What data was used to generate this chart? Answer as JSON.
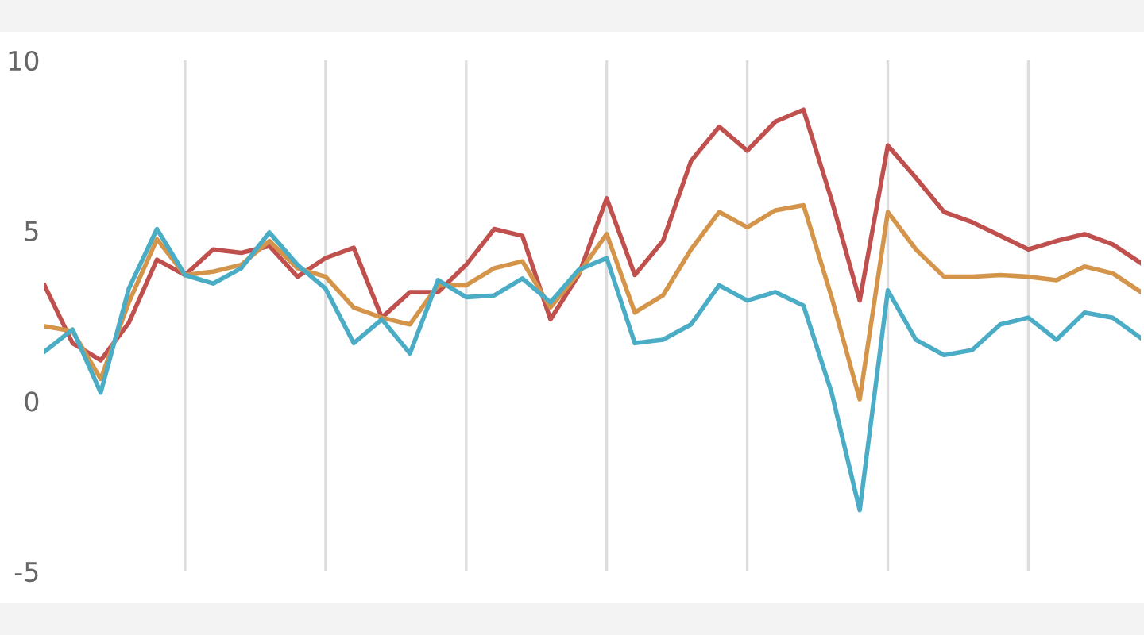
{
  "chart_data": {
    "type": "line",
    "categories": [
      null,
      null,
      null,
      null,
      null,
      null,
      null,
      null,
      null,
      null,
      null,
      null,
      null,
      null,
      null,
      null,
      null,
      null,
      null,
      null,
      null,
      null,
      null,
      null,
      null,
      null,
      null,
      null,
      null,
      null,
      null,
      null,
      null,
      null,
      null,
      null,
      null,
      null,
      null,
      null
    ],
    "ylim": [
      -5,
      10
    ],
    "yticks": [
      -5,
      0,
      5,
      10
    ],
    "tick_labels": "y",
    "grid": "x",
    "marker": "none",
    "line_style": "solid",
    "series": [
      {
        "color": "#c0504d",
        "values": [
          3.4,
          1.7,
          1.2,
          2.3,
          4.15,
          3.7,
          4.45,
          4.35,
          4.55,
          3.65,
          4.2,
          4.5,
          2.45,
          3.2,
          3.2,
          4.0,
          5.05,
          4.85,
          2.4,
          3.7,
          5.95,
          3.7,
          4.7,
          7.05,
          8.05,
          7.35,
          8.2,
          8.55,
          5.9,
          2.95,
          7.5,
          6.55,
          5.55,
          5.25,
          4.85,
          4.45,
          4.7,
          4.9,
          4.6,
          4.05
        ]
      },
      {
        "color": "#d4954a",
        "values": [
          2.2,
          2.05,
          0.65,
          2.9,
          4.75,
          3.7,
          3.8,
          4.0,
          4.7,
          3.9,
          3.65,
          2.75,
          2.45,
          2.25,
          3.4,
          3.4,
          3.9,
          4.1,
          2.75,
          3.75,
          4.9,
          2.6,
          3.1,
          4.45,
          5.55,
          5.1,
          5.6,
          5.75,
          3.05,
          0.05,
          5.55,
          4.45,
          3.65,
          3.65,
          3.7,
          3.65,
          3.55,
          3.95,
          3.75,
          3.2
        ]
      },
      {
        "color": "#4bacc6",
        "values": [
          1.45,
          2.1,
          0.25,
          3.3,
          5.05,
          3.7,
          3.45,
          3.9,
          4.95,
          4.0,
          3.3,
          1.7,
          2.4,
          1.4,
          3.55,
          3.05,
          3.1,
          3.6,
          2.9,
          3.85,
          4.2,
          1.7,
          1.8,
          2.25,
          3.4,
          2.95,
          3.2,
          2.8,
          0.25,
          -3.2,
          3.25,
          1.8,
          1.35,
          1.5,
          2.25,
          2.45,
          1.8,
          2.6,
          2.45,
          1.85
        ]
      }
    ]
  }
}
